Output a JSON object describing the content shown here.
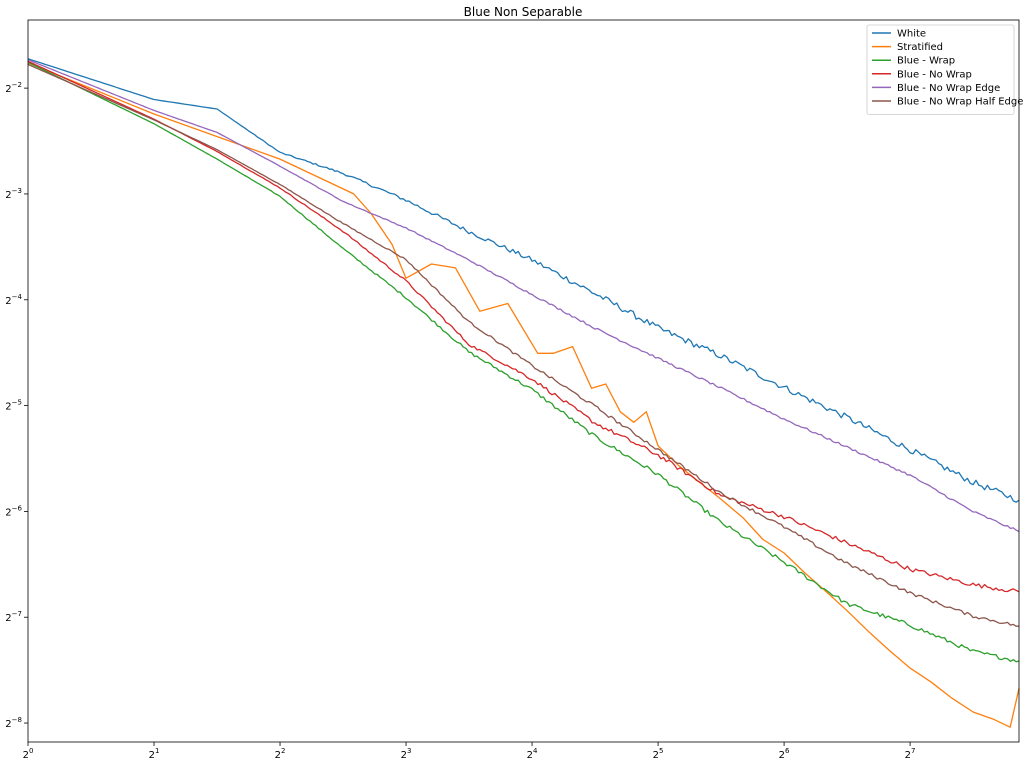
{
  "chart_data": {
    "type": "line",
    "title": "Blue Non Separable",
    "xlabel": "",
    "ylabel": "",
    "x_scale": "log2",
    "y_scale": "log2",
    "xlim": [
      1,
      233
    ],
    "ylim": [
      0.00345,
      0.3906
    ],
    "x_ticks": [
      {
        "value": 1,
        "base": "2",
        "exp": "0"
      },
      {
        "value": 2,
        "base": "2",
        "exp": "1"
      },
      {
        "value": 4,
        "base": "2",
        "exp": "2"
      },
      {
        "value": 8,
        "base": "2",
        "exp": "3"
      },
      {
        "value": 16,
        "base": "2",
        "exp": "4"
      },
      {
        "value": 32,
        "base": "2",
        "exp": "5"
      },
      {
        "value": 64,
        "base": "2",
        "exp": "6"
      },
      {
        "value": 128,
        "base": "2",
        "exp": "7"
      }
    ],
    "y_ticks": [
      {
        "value": 0.25,
        "base": "2",
        "exp": "−2"
      },
      {
        "value": 0.125,
        "base": "2",
        "exp": "−3"
      },
      {
        "value": 0.0625,
        "base": "2",
        "exp": "−4"
      },
      {
        "value": 0.03125,
        "base": "2",
        "exp": "−5"
      },
      {
        "value": 0.015625,
        "base": "2",
        "exp": "−6"
      },
      {
        "value": 0.0078125,
        "base": "2",
        "exp": "−7"
      },
      {
        "value": 0.00390625,
        "base": "2",
        "exp": "−8"
      }
    ],
    "grid": false,
    "legend_position": "top-right",
    "series": [
      {
        "name": "White",
        "color": "#1f77b4",
        "x": [
          1,
          2,
          2.83,
          4,
          5.66,
          8,
          11.3,
          16,
          22.6,
          32,
          45.3,
          64,
          90.5,
          128,
          181,
          233
        ],
        "y": [
          0.303,
          0.232,
          0.218,
          0.164,
          0.143,
          0.12,
          0.0977,
          0.0811,
          0.0651,
          0.0519,
          0.0432,
          0.0352,
          0.0289,
          0.0234,
          0.0189,
          0.0168
        ],
        "noise": 0.03
      },
      {
        "name": "Stratified",
        "color": "#ff7f0e",
        "x": [
          1,
          2,
          4,
          6,
          6.6,
          7.4,
          8,
          9.2,
          10.5,
          12,
          14,
          16.5,
          18,
          20,
          22.2,
          24,
          26,
          28,
          30,
          32,
          36,
          40,
          45,
          51,
          57,
          64,
          72,
          81,
          91,
          102,
          114,
          128,
          144,
          161,
          181,
          203,
          222,
          233
        ],
        "y": [
          0.295,
          0.211,
          0.157,
          0.125,
          0.11,
          0.09,
          0.072,
          0.079,
          0.077,
          0.058,
          0.061,
          0.044,
          0.044,
          0.046,
          0.035,
          0.036,
          0.03,
          0.028,
          0.03,
          0.024,
          0.021,
          0.019,
          0.017,
          0.015,
          0.013,
          0.0119,
          0.0104,
          0.0092,
          0.0081,
          0.0071,
          0.0063,
          0.0056,
          0.0051,
          0.0046,
          0.0042,
          0.004,
          0.0038,
          0.0049
        ],
        "noise": 0.0
      },
      {
        "name": "Blue - Wrap",
        "color": "#2ca02c",
        "x": [
          1,
          2,
          2.83,
          4,
          5.66,
          8,
          11.3,
          16,
          22.6,
          32,
          45.3,
          64,
          90.5,
          128,
          181,
          233
        ],
        "y": [
          0.296,
          0.198,
          0.157,
          0.123,
          0.0874,
          0.0634,
          0.0444,
          0.0347,
          0.0255,
          0.0199,
          0.0145,
          0.0112,
          0.00853,
          0.00742,
          0.00624,
          0.00586
        ],
        "noise": 0.02
      },
      {
        "name": "Blue - No Wrap",
        "color": "#d62728",
        "x": [
          1,
          2,
          2.83,
          4,
          5.66,
          8,
          11.3,
          16,
          22.6,
          32,
          45.3,
          64,
          90.5,
          128,
          181,
          233
        ],
        "y": [
          0.298,
          0.204,
          0.165,
          0.13,
          0.0978,
          0.0707,
          0.0467,
          0.0372,
          0.0279,
          0.0226,
          0.0173,
          0.0151,
          0.0127,
          0.0107,
          0.00967,
          0.00923
        ],
        "noise": 0.02
      },
      {
        "name": "Blue - No Wrap Edge",
        "color": "#9467bd",
        "x": [
          1,
          2,
          2.83,
          4,
          5.66,
          8,
          11.3,
          16,
          22.6,
          32,
          45.3,
          64,
          90.5,
          128,
          181,
          233
        ],
        "y": [
          0.301,
          0.216,
          0.187,
          0.15,
          0.119,
          0.1,
          0.0811,
          0.0647,
          0.0519,
          0.0426,
          0.035,
          0.0286,
          0.0238,
          0.0198,
          0.0156,
          0.0137
        ],
        "noise": 0.01
      },
      {
        "name": "Blue - No Wrap Half Edge",
        "color": "#8c564b",
        "x": [
          1,
          2,
          2.83,
          4,
          5.66,
          8,
          11.3,
          16,
          22.6,
          32,
          45.3,
          64,
          90.5,
          128,
          181,
          233
        ],
        "y": [
          0.292,
          0.203,
          0.167,
          0.133,
          0.103,
          0.0813,
          0.0541,
          0.0406,
          0.0311,
          0.0234,
          0.0176,
          0.0141,
          0.0111,
          0.00916,
          0.00787,
          0.00737
        ],
        "noise": 0.015
      }
    ]
  }
}
